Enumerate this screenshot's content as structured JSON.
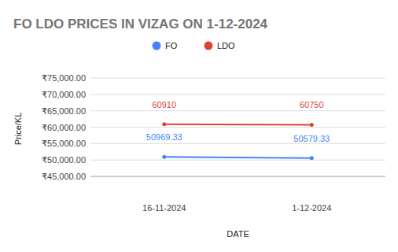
{
  "chart_data": {
    "type": "line",
    "title": "FO LDO PRICES IN VIZAG ON 1-12-2024",
    "x_label": "DATE",
    "y_label": "Price/KL",
    "categories": [
      "16-11-2024",
      "1-12-2024"
    ],
    "series": [
      {
        "name": "FO",
        "color": "#4285f4",
        "values": [
          50969.33,
          50579.33
        ]
      },
      {
        "name": "LDO",
        "color": "#db4437",
        "values": [
          60910,
          60750
        ]
      }
    ],
    "ylim": [
      45000,
      75000
    ],
    "yticks": [
      {
        "value": 45000,
        "label": "₹45,000.00"
      },
      {
        "value": 50000,
        "label": "₹50,000.00"
      },
      {
        "value": 55000,
        "label": "₹55,000.00"
      },
      {
        "value": 60000,
        "label": "₹60,000.00"
      },
      {
        "value": 65000,
        "label": "₹65,000.00"
      },
      {
        "value": 70000,
        "label": "₹70,000.00"
      },
      {
        "value": 75000,
        "label": "₹75,000.00"
      }
    ],
    "grid": true,
    "legend": "top",
    "data_labels": true,
    "marker": "circle"
  }
}
